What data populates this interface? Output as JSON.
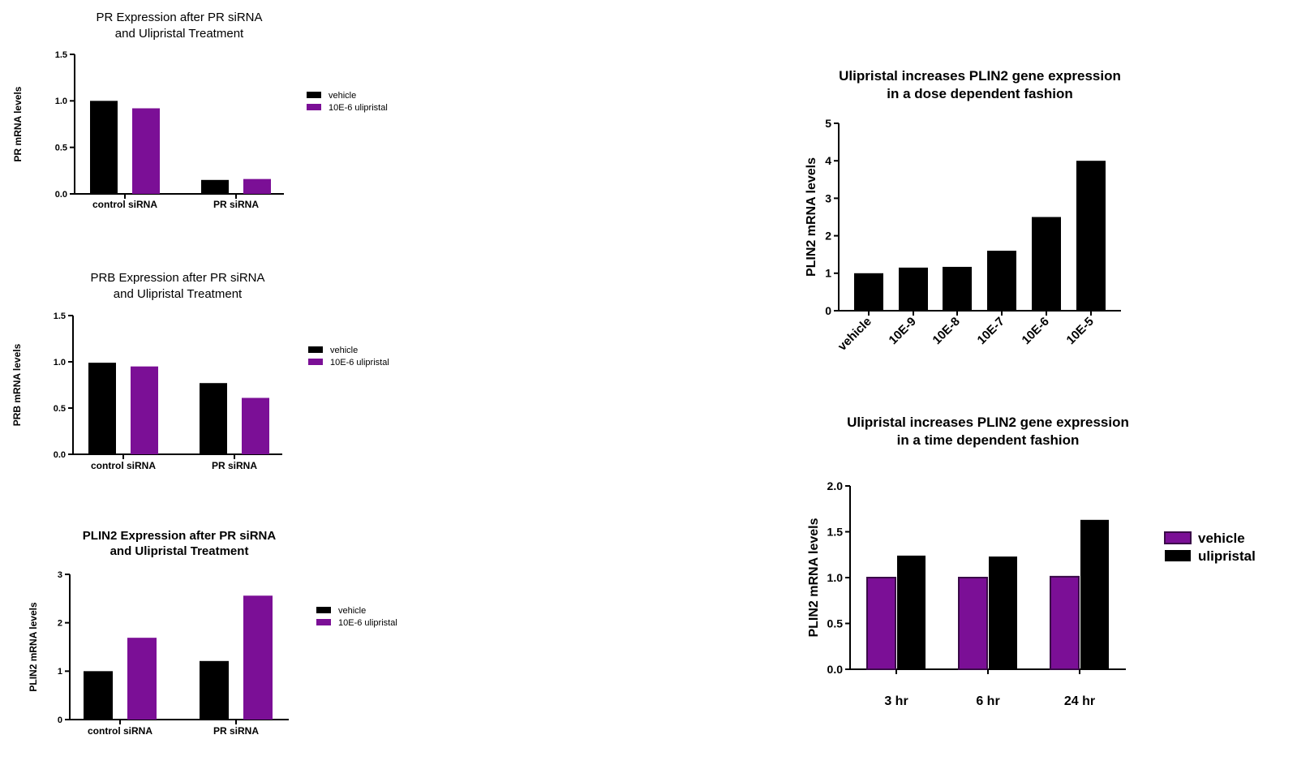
{
  "colors": {
    "black": "#000000",
    "purple": "#7b0f96",
    "purple_edge": "#3a0a48"
  },
  "chart_data": [
    {
      "type": "bar",
      "title": [
        "PR Expression after PR siRNA",
        "and Ulipristal Treatment"
      ],
      "ylabel": "PR mRNA levels",
      "xlabel": "",
      "categories": [
        "control siRNA",
        "PR siRNA"
      ],
      "ylim": [
        0,
        1.5
      ],
      "yticks": [
        "0.0",
        "0.5",
        "1.0",
        "1.5"
      ],
      "series": [
        {
          "name": "vehicle",
          "color": "#000000",
          "values": [
            1.0,
            0.15
          ]
        },
        {
          "name": "10E-6 ulipristal",
          "color": "#7b0f96",
          "values": [
            0.92,
            0.16
          ]
        }
      ],
      "legend": "right",
      "grid": false
    },
    {
      "type": "bar",
      "title": [
        "PRB Expression after PR siRNA",
        "and Ulipristal Treatment"
      ],
      "ylabel": "PRB mRNA levels",
      "xlabel": "",
      "categories": [
        "control siRNA",
        "PR siRNA"
      ],
      "ylim": [
        0,
        1.5
      ],
      "yticks": [
        "0.0",
        "0.5",
        "1.0",
        "1.5"
      ],
      "series": [
        {
          "name": "vehicle",
          "color": "#000000",
          "values": [
            0.99,
            0.77
          ]
        },
        {
          "name": "10E-6 ulipristal",
          "color": "#7b0f96",
          "values": [
            0.95,
            0.61
          ]
        }
      ],
      "legend": "right",
      "grid": false
    },
    {
      "type": "bar",
      "title": [
        "PLIN2 Expression after PR siRNA",
        "and Ulipristal Treatment"
      ],
      "ylabel": "PLIN2 mRNA levels",
      "xlabel": "",
      "categories": [
        "control siRNA",
        "PR siRNA"
      ],
      "ylim": [
        0,
        3
      ],
      "yticks": [
        "0",
        "1",
        "2",
        "3"
      ],
      "series": [
        {
          "name": "vehicle",
          "color": "#000000",
          "values": [
            1.0,
            1.21
          ]
        },
        {
          "name": "10E-6 ulipristal",
          "color": "#7b0f96",
          "values": [
            1.69,
            2.56
          ]
        }
      ],
      "legend": "right",
      "grid": false
    },
    {
      "type": "bar",
      "title": [
        "Ulipristal increases PLIN2 gene expression",
        "in a dose dependent fashion"
      ],
      "ylabel": "PLIN2 mRNA levels",
      "xlabel": "",
      "categories": [
        "vehicle",
        "10E-9",
        "10E-8",
        "10E-7",
        "10E-6",
        "10E-5"
      ],
      "ylim": [
        0,
        5
      ],
      "yticks": [
        "0",
        "1",
        "2",
        "3",
        "4",
        "5"
      ],
      "series": [
        {
          "color": "#000000",
          "values": [
            1.0,
            1.15,
            1.17,
            1.6,
            2.5,
            4.0
          ]
        }
      ],
      "grid": false
    },
    {
      "type": "bar",
      "title": [
        "Ulipristal increases PLIN2 gene expression",
        "in a time dependent fashion"
      ],
      "ylabel": "PLIN2 mRNA levels",
      "xlabel": "",
      "categories": [
        "3 hr",
        "6 hr",
        "24 hr"
      ],
      "ylim": [
        0,
        2.0
      ],
      "yticks": [
        "0.0",
        "0.5",
        "1.0",
        "1.5",
        "2.0"
      ],
      "series": [
        {
          "name": "vehicle",
          "color": "#7b0f96",
          "values": [
            1.0,
            1.0,
            1.01
          ]
        },
        {
          "name": "ulipristal",
          "color": "#000000",
          "values": [
            1.24,
            1.23,
            1.63
          ]
        }
      ],
      "legend": "right",
      "grid": false
    }
  ]
}
